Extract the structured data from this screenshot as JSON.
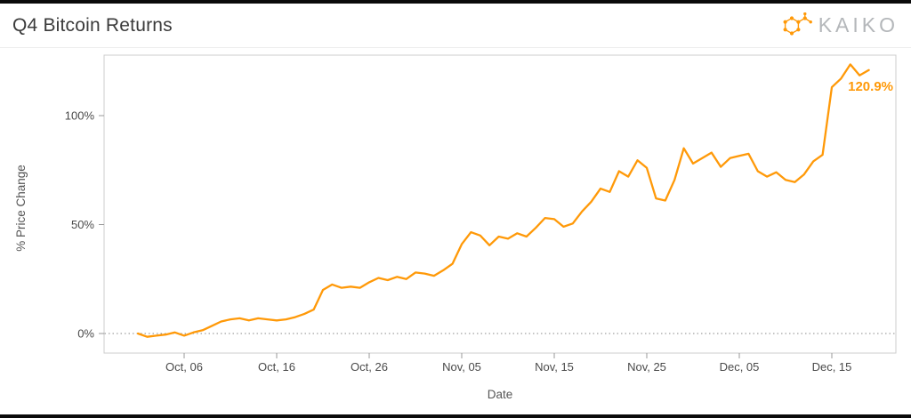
{
  "header": {
    "title": "Q4 Bitcoin Returns",
    "brand": "KAIKO"
  },
  "brand_color": "#FF9908",
  "chart_data": {
    "type": "line",
    "title": "Q4 Bitcoin Returns",
    "xlabel": "Date",
    "ylabel": "% Price Change",
    "legend": "none",
    "grid": "dotted zero line only",
    "line_color": "#FF9908",
    "ylim": [
      -9,
      128
    ],
    "annotation": {
      "text": "120.9%",
      "position": "end-of-line"
    },
    "y_ticks": [
      {
        "value": 0,
        "label": "0%"
      },
      {
        "value": 50,
        "label": "50%"
      },
      {
        "value": 100,
        "label": "100%"
      }
    ],
    "x_ticks": [
      {
        "index": 5,
        "label": "Oct, 06"
      },
      {
        "index": 15,
        "label": "Oct, 16"
      },
      {
        "index": 25,
        "label": "Oct, 26"
      },
      {
        "index": 35,
        "label": "Nov, 05"
      },
      {
        "index": 45,
        "label": "Nov, 15"
      },
      {
        "index": 55,
        "label": "Nov, 25"
      },
      {
        "index": 65,
        "label": "Dec, 05"
      },
      {
        "index": 75,
        "label": "Dec, 15"
      }
    ],
    "x": [
      "Oct 01",
      "Oct 02",
      "Oct 03",
      "Oct 04",
      "Oct 05",
      "Oct 06",
      "Oct 07",
      "Oct 08",
      "Oct 09",
      "Oct 10",
      "Oct 11",
      "Oct 12",
      "Oct 13",
      "Oct 14",
      "Oct 15",
      "Oct 16",
      "Oct 17",
      "Oct 18",
      "Oct 19",
      "Oct 20",
      "Oct 21",
      "Oct 22",
      "Oct 23",
      "Oct 24",
      "Oct 25",
      "Oct 26",
      "Oct 27",
      "Oct 28",
      "Oct 29",
      "Oct 30",
      "Oct 31",
      "Nov 01",
      "Nov 02",
      "Nov 03",
      "Nov 04",
      "Nov 05",
      "Nov 06",
      "Nov 07",
      "Nov 08",
      "Nov 09",
      "Nov 10",
      "Nov 11",
      "Nov 12",
      "Nov 13",
      "Nov 14",
      "Nov 15",
      "Nov 16",
      "Nov 17",
      "Nov 18",
      "Nov 19",
      "Nov 20",
      "Nov 21",
      "Nov 22",
      "Nov 23",
      "Nov 24",
      "Nov 25",
      "Nov 26",
      "Nov 27",
      "Nov 28",
      "Nov 29",
      "Nov 30",
      "Dec 01",
      "Dec 02",
      "Dec 03",
      "Dec 04",
      "Dec 05",
      "Dec 06",
      "Dec 07",
      "Dec 08",
      "Dec 09",
      "Dec 10",
      "Dec 11",
      "Dec 12",
      "Dec 13",
      "Dec 14",
      "Dec 15",
      "Dec 16",
      "Dec 17",
      "Dec 18",
      "Dec 19"
    ],
    "values": [
      0,
      -1.5,
      -1,
      -0.5,
      0.5,
      -1,
      0.5,
      1.5,
      3.5,
      5.5,
      6.5,
      7,
      6,
      7,
      6.5,
      6,
      6.5,
      7.5,
      9,
      11,
      20,
      22.5,
      21,
      21.5,
      21,
      23.5,
      25.5,
      24.5,
      26,
      25,
      28,
      27.5,
      26.5,
      29,
      32,
      41,
      46.5,
      45,
      40.5,
      44.5,
      43.5,
      46,
      44.5,
      48.5,
      53,
      52.5,
      49,
      50.5,
      56,
      60.5,
      66.5,
      65,
      74.5,
      72,
      79.5,
      76,
      62,
      61,
      70.5,
      85,
      78,
      80.5,
      83,
      76.5,
      80.5,
      81.5,
      82.5,
      74.5,
      72,
      74,
      70.5,
      69.5,
      73,
      79,
      82,
      113,
      117,
      123.5,
      118.5,
      120.9
    ]
  }
}
